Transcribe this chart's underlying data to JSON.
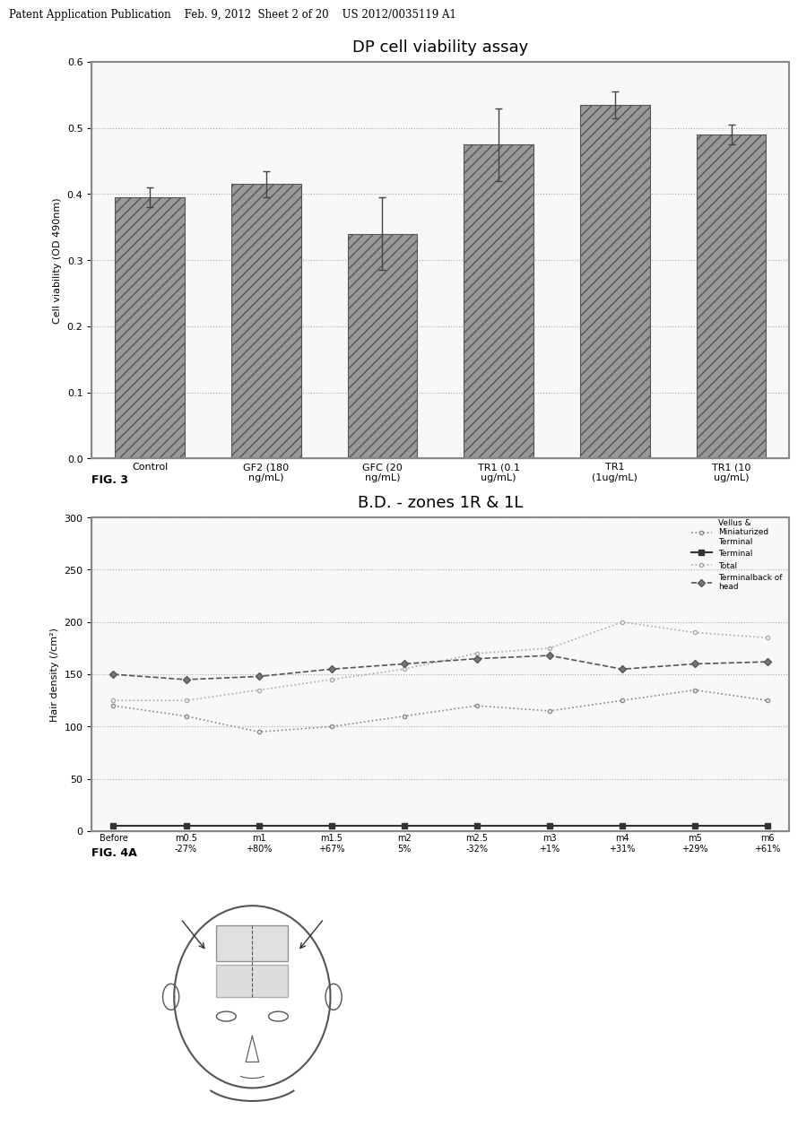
{
  "page_header": "Patent Application Publication    Feb. 9, 2012  Sheet 2 of 20    US 2012/0035119 A1",
  "fig3": {
    "title": "DP cell viability assay",
    "ylabel": "Cell viability (OD 490nm)",
    "ylim": [
      0,
      0.6
    ],
    "yticks": [
      0,
      0.1,
      0.2,
      0.3,
      0.4,
      0.5,
      0.6
    ],
    "categories": [
      "Control",
      "GF2 (180\nng/mL)",
      "GFC (20\nng/mL)",
      "TR1 (0.1\nug/mL)",
      "TR1\n(1ug/mL)",
      "TR1 (10\nug/mL)"
    ],
    "values": [
      0.395,
      0.415,
      0.34,
      0.475,
      0.535,
      0.49
    ],
    "errors": [
      0.015,
      0.02,
      0.055,
      0.055,
      0.02,
      0.015
    ],
    "bar_color": "#999999",
    "bar_hatch": "///",
    "fig_label": "FIG. 3"
  },
  "fig4a": {
    "title": "B.D. - zones 1R & 1L",
    "ylabel": "Hair density (/cm²)",
    "ylim": [
      0,
      300
    ],
    "yticks": [
      0,
      50,
      100,
      150,
      200,
      250,
      300
    ],
    "xlabel_vals": [
      "Before",
      "m0.5\n-27%",
      "m1\n+80%",
      "m1.5\n+67%",
      "m2\n5%",
      "m2.5\n-32%",
      "m3\n+1%",
      "m4\n+31%",
      "m5\n+29%",
      "m6\n+61%"
    ],
    "line1_label": "Vellus &\nMiniaturized\nTerminal",
    "line1_values": [
      120,
      110,
      95,
      100,
      110,
      120,
      115,
      125,
      135,
      125
    ],
    "line1_style": "dotted",
    "line1_color": "#888888",
    "line2_label": "Terminal",
    "line2_values": [
      5,
      5,
      5,
      5,
      5,
      5,
      5,
      5,
      5,
      5
    ],
    "line2_style": "solid",
    "line2_color": "#333333",
    "line2_marker": "s",
    "line3_label": "Total",
    "line3_values": [
      125,
      125,
      135,
      145,
      155,
      170,
      175,
      200,
      190,
      185
    ],
    "line3_style": "dotted",
    "line3_color": "#aaaaaa",
    "line4_label": "Terminalback of\nhead",
    "line4_values": [
      150,
      145,
      148,
      155,
      160,
      165,
      168,
      155,
      160,
      162
    ],
    "line4_style": "dashed",
    "line4_color": "#555555",
    "fig_label": "FIG. 4A"
  },
  "background_color": "#ffffff",
  "border_color": "#888888",
  "text_color": "#000000"
}
